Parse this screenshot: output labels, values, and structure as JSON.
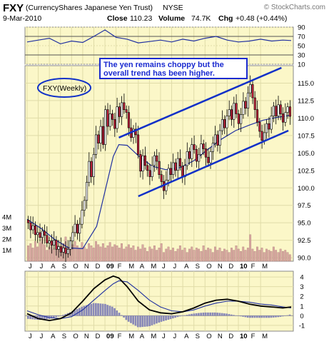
{
  "header": {
    "symbol": "FXY",
    "name": "(CurrencyShares Japanese Yen Trust)",
    "exchange": "NYSE",
    "watermark": "© StockCharts.com",
    "date": "9-Mar-2010",
    "close_label": "Close",
    "close_value": "110.23",
    "volume_label": "Volume",
    "volume_value": "74.7K",
    "chg_label": "Chg",
    "chg_value": "+0.48 (+0.44%)"
  },
  "colors": {
    "panel_bg": "#fbf7c8",
    "grid": "#e0dca8",
    "up_candle": "#ffffff",
    "down_candle": "#c0203a",
    "ma_line": "#2030a0",
    "trend_line": "#1030c8",
    "volume_bar": "#d8a8a0",
    "macd_hist": "#8888b8",
    "annotation_text": "#1a2ad0"
  },
  "chart_data": [
    {
      "type": "line",
      "name": "RSI",
      "ylim": [
        10,
        90
      ],
      "tick_labels": [
        "90",
        "70",
        "50",
        "30",
        "10"
      ],
      "tick_values": [
        90,
        70,
        50,
        30,
        10
      ],
      "x": [
        0,
        8,
        16,
        24,
        32,
        40,
        48,
        56,
        64,
        72,
        80,
        88,
        96,
        104,
        112,
        120,
        128,
        136,
        144,
        152,
        160,
        168,
        176,
        184,
        190
      ],
      "values": [
        58,
        62,
        66,
        54,
        60,
        57,
        70,
        84,
        68,
        64,
        56,
        59,
        62,
        58,
        64,
        60,
        66,
        70,
        62,
        58,
        60,
        64,
        60,
        62,
        61
      ]
    },
    {
      "type": "candlestick",
      "name": "FXY (Weekly)",
      "label_symbol": "FXY",
      "label_period": "(Weekly)",
      "ylim": [
        89.5,
        117.5
      ],
      "tick_labels": [
        "115.0",
        "112.5",
        "110.0",
        "107.5",
        "105.0",
        "102.5",
        "100.0",
        "97.5",
        "95.0",
        "92.5",
        "90.0"
      ],
      "tick_values": [
        115,
        112.5,
        110,
        107.5,
        105,
        102.5,
        100,
        97.5,
        95,
        92.5,
        90
      ],
      "x_labels": [
        "J",
        "J",
        "A",
        "S",
        "O",
        "N",
        "D",
        "09",
        "F",
        "M",
        "A",
        "M",
        "J",
        "J",
        "A",
        "S",
        "O",
        "N",
        "D",
        "10",
        "F",
        "M"
      ],
      "x_label_positions": [
        0,
        8,
        16,
        24,
        32,
        40,
        48,
        56,
        64,
        72,
        80,
        88,
        96,
        104,
        112,
        120,
        128,
        136,
        144,
        152,
        160,
        168
      ],
      "annotation": "The yen remains choppy but the overall trend has been higher.",
      "annotation_lines": [
        "The yen remains choppy but the",
        "overall trend has been higher."
      ],
      "trend_upper": [
        [
          66,
          107.2
        ],
        [
          183,
          117.2
        ]
      ],
      "trend_lower": [
        [
          80,
          98.8
        ],
        [
          188,
          108.2
        ]
      ],
      "closes": [
        95,
        94,
        94.6,
        93.3,
        93.6,
        92.9,
        93.8,
        93.2,
        92.1,
        92.4,
        91.8,
        92.5,
        91.2,
        91.6,
        90.8,
        91.4,
        90.6,
        91.2,
        92.4,
        93.6,
        94.8,
        93.5,
        94.8,
        96.8,
        98.2,
        100.8,
        103.8,
        101.6,
        104.8,
        107.6,
        106.4,
        108.8,
        106.2,
        111.2,
        108.8,
        110.6,
        109.8,
        108.5,
        111.6,
        110.2,
        112.2,
        111.2,
        110.8,
        108.6,
        107.2,
        108.4,
        107.6,
        104.8,
        102.4,
        104.6,
        103.2,
        102.5,
        101.6,
        103.2,
        104.6,
        103.8,
        101.9,
        100.9,
        99.6,
        101.1,
        102.8,
        101.9,
        103.6,
        102.5,
        104.2,
        103.1,
        101.6,
        103.2,
        105.2,
        104.2,
        106.2,
        105.5,
        103.8,
        104.8,
        106.3,
        105.6,
        104.4,
        103.6,
        105.2,
        106.4,
        107.6,
        106.1,
        108.2,
        109.8,
        108.6,
        110.3,
        111.2,
        109.8,
        112.1,
        110.6,
        109.2,
        110.5,
        112.4,
        111.4,
        113.6,
        114.8,
        112.9,
        111.2,
        109.4,
        108.1,
        106.8,
        107.9,
        109.2,
        108.4,
        110.3,
        111.7,
        110.3,
        111.9,
        110.6,
        109.4,
        110.8,
        111.6,
        110.23
      ],
      "ma_x": [
        0,
        10,
        20,
        30,
        40,
        50,
        56,
        62,
        66,
        72,
        80,
        90,
        100,
        110,
        120,
        130,
        140,
        150,
        160,
        170,
        180,
        190
      ],
      "ma_values": [
        95.5,
        94.2,
        92.6,
        91.4,
        91.3,
        94.5,
        99.5,
        104.5,
        106.2,
        106.1,
        104.6,
        103.1,
        102.6,
        102.9,
        103.9,
        105.5,
        107.0,
        108.2,
        109.0,
        109.7,
        110.1,
        110.4
      ]
    },
    {
      "type": "bar",
      "name": "Volume",
      "tick_labels": [
        "4M",
        "3M",
        "2M",
        "1M"
      ],
      "tick_values": [
        4,
        3,
        2,
        1
      ],
      "values": [
        1.4,
        1.6,
        1.2,
        1.8,
        1.3,
        1.7,
        2.2,
        1.5,
        1.0,
        1.3,
        1.6,
        1.1,
        1.9,
        1.4,
        1.2,
        1.6,
        2.2,
        1.3,
        1.1,
        1.5,
        1.8,
        1.4,
        1.2,
        1.7,
        1.3,
        1.1,
        1.6,
        1.4,
        1.2,
        1.8,
        1.5,
        1.3,
        1.6,
        1.2,
        1.4,
        1.7,
        1.3,
        1.5,
        1.4,
        1.2,
        1.6,
        1.1,
        1.3,
        1.5,
        1.2,
        1.4,
        1.0,
        1.3,
        1.1,
        1.5,
        1.2,
        0.9,
        1.3,
        1.1,
        1.4,
        1.0,
        1.2,
        1.6,
        0.8,
        1.1,
        1.3,
        1.0,
        1.2,
        0.9,
        1.1,
        1.4,
        1.0,
        1.2,
        0.8,
        1.1,
        1.3,
        1.0,
        1.2,
        1.1,
        0.9,
        1.4,
        1.0,
        1.2,
        1.1,
        0.8,
        1.3,
        1.0,
        1.2,
        0.9,
        1.1,
        1.0,
        0.8,
        1.2,
        1.0,
        1.4,
        1.1,
        0.9,
        1.3,
        1.0,
        1.2,
        2.4,
        1.1,
        0.9,
        1.3,
        1.0,
        1.2,
        0.8,
        1.1,
        1.0,
        0.9,
        1.3,
        1.0,
        0.8,
        1.1,
        0.9,
        1.0,
        0.8,
        0.6
      ]
    },
    {
      "type": "line",
      "name": "MACD",
      "ylim": [
        -1.6,
        4.6
      ],
      "tick_labels": [
        "4",
        "3",
        "2",
        "1",
        "0",
        "-1"
      ],
      "tick_values": [
        4,
        3,
        2,
        1,
        0,
        -1
      ],
      "x_labels": [
        "J",
        "J",
        "A",
        "S",
        "O",
        "N",
        "D",
        "09",
        "F",
        "M",
        "A",
        "M",
        "J",
        "J",
        "A",
        "S",
        "O",
        "N",
        "D",
        "10",
        "F",
        "M"
      ],
      "x": [
        0,
        8,
        16,
        24,
        32,
        40,
        48,
        56,
        62,
        66,
        72,
        80,
        88,
        96,
        104,
        112,
        120,
        128,
        136,
        144,
        152,
        160,
        168,
        176,
        184,
        190
      ],
      "macd": [
        0.2,
        -0.3,
        -0.5,
        -0.3,
        0.3,
        1.5,
        2.8,
        3.7,
        4.1,
        3.9,
        3.0,
        1.5,
        0.6,
        0.3,
        0.2,
        0.4,
        0.8,
        1.3,
        1.6,
        1.7,
        1.5,
        1.2,
        1.0,
        0.9,
        0.8,
        0.9
      ],
      "signal": [
        0.5,
        0.1,
        -0.2,
        -0.3,
        -0.1,
        0.6,
        1.6,
        2.6,
        3.3,
        3.6,
        3.5,
        2.6,
        1.6,
        0.9,
        0.5,
        0.4,
        0.6,
        1.0,
        1.3,
        1.5,
        1.5,
        1.4,
        1.2,
        1.1,
        0.9,
        0.8
      ]
    }
  ]
}
